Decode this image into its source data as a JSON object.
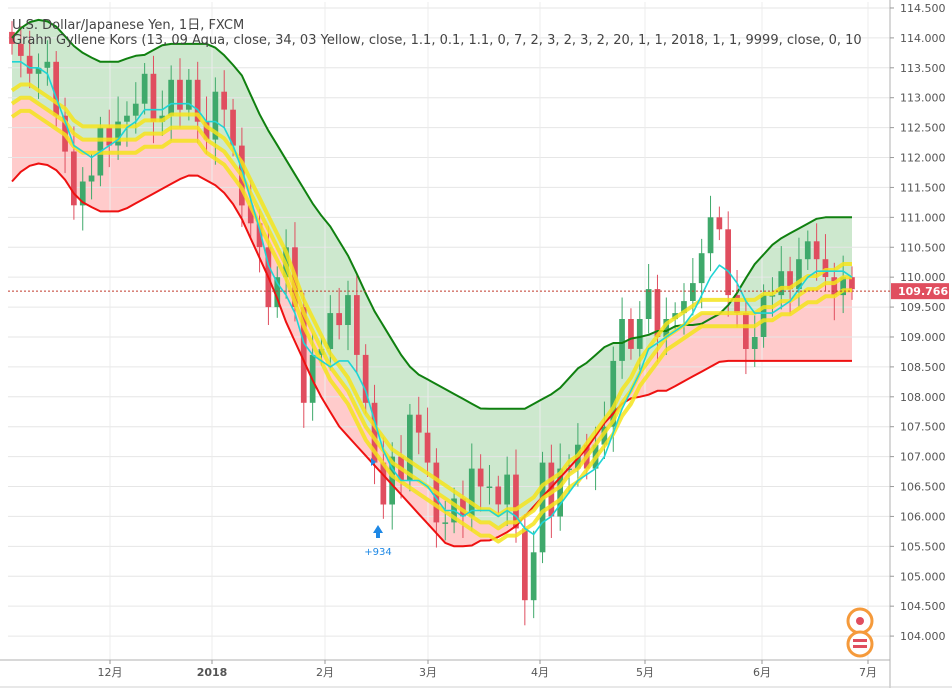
{
  "legend": {
    "title": "U.S. Dollar/Japanese Yen, 1日, FXCM",
    "indicator": "Grahn Gyllene Kors (13, 09 Aqua, close, 34, 03 Yellow, close, 1.1, 0.1, 1.1, 0, 7, 2, 3, 2, 3, 2, 20, 1, 1, 2018, 1, 1, 9999, close, 0, 10"
  },
  "price_label": "109.766",
  "signal": {
    "arrow": "up-arrow-icon",
    "label": "+934"
  },
  "colors": {
    "up": "#3fa96b",
    "down": "#e04e5f",
    "green_band": "#c8e6c9",
    "red_band": "#ffc5c5",
    "green_line": "#108010",
    "red_line": "#ee1111",
    "aqua": "#1fd5d5",
    "yellow": "#f5e41c",
    "price_line": "#c0392b"
  },
  "chart_data": {
    "type": "candlestick",
    "title": "U.S. Dollar/Japanese Yen, 1日, FXCM",
    "x_ticks": [
      "12月",
      "2018",
      "2月",
      "3月",
      "4月",
      "5月",
      "6月",
      "7月"
    ],
    "y_ticks": [
      "104.000",
      "104.500",
      "105.000",
      "105.500",
      "106.000",
      "106.500",
      "107.000",
      "107.500",
      "108.000",
      "108.500",
      "109.000",
      "109.500",
      "110.000",
      "110.500",
      "111.000",
      "111.500",
      "112.000",
      "112.500",
      "113.000",
      "113.500",
      "114.000",
      "114.500"
    ],
    "ylim": [
      103.6,
      114.6
    ],
    "last_price": 109.766,
    "close": [
      113.9,
      113.7,
      113.4,
      113.5,
      113.6,
      112.7,
      112.1,
      111.2,
      111.6,
      111.7,
      112.5,
      112.2,
      112.6,
      112.7,
      112.9,
      113.4,
      112.6,
      112.7,
      113.3,
      112.8,
      113.3,
      112.6,
      112.3,
      113.1,
      112.8,
      112.2,
      111.2,
      110.9,
      110.5,
      109.5,
      110.0,
      110.5,
      109.5,
      107.9,
      108.7,
      108.8,
      109.4,
      109.2,
      109.7,
      108.7,
      107.9,
      106.9,
      106.2,
      107.0,
      106.6,
      107.7,
      107.4,
      106.9,
      105.9,
      105.9,
      106.3,
      106.0,
      106.8,
      106.5,
      106.5,
      106.2,
      106.7,
      105.8,
      104.6,
      105.4,
      106.9,
      106.0,
      106.8,
      106.8,
      107.2,
      106.8,
      107.2,
      107.5,
      108.6,
      109.3,
      108.8,
      109.3,
      109.8,
      109.0,
      109.3,
      109.4,
      109.6,
      109.9,
      110.4,
      111.0,
      110.8,
      109.7,
      109.4,
      108.8,
      109.0,
      109.7,
      109.7,
      110.1,
      109.8,
      110.3,
      110.6,
      110.3,
      110.0,
      109.7,
      110.0,
      109.8
    ],
    "ma_aqua": [
      113.6,
      113.6,
      113.5,
      113.5,
      113.4,
      113.0,
      112.6,
      112.2,
      112.1,
      112.0,
      112.1,
      112.2,
      112.3,
      112.5,
      112.6,
      112.8,
      112.8,
      112.8,
      112.9,
      112.9,
      112.9,
      112.8,
      112.6,
      112.6,
      112.5,
      112.2,
      111.8,
      111.3,
      110.8,
      110.2,
      109.9,
      109.7,
      109.4,
      108.9,
      108.7,
      108.6,
      108.5,
      108.6,
      108.6,
      108.4,
      108.1,
      107.6,
      107.1,
      106.8,
      106.6,
      106.6,
      106.6,
      106.5,
      106.3,
      106.1,
      106.1,
      106.0,
      106.1,
      106.1,
      106.1,
      106.0,
      106.1,
      106.0,
      105.8,
      105.7,
      105.9,
      106.0,
      106.2,
      106.4,
      106.6,
      106.7,
      106.8,
      107.0,
      107.4,
      107.8,
      108.1,
      108.4,
      108.8,
      108.9,
      109.0,
      109.1,
      109.2,
      109.4,
      109.7,
      110.0,
      110.2,
      110.1,
      109.9,
      109.6,
      109.4,
      109.4,
      109.4,
      109.5,
      109.6,
      109.8,
      110.0,
      110.1,
      110.1,
      110.1,
      110.1,
      110.0
    ],
    "ma_yellow": [
      112.9,
      113.0,
      113.0,
      112.9,
      112.8,
      112.7,
      112.6,
      112.4,
      112.3,
      112.3,
      112.3,
      112.3,
      112.3,
      112.3,
      112.3,
      112.4,
      112.4,
      112.4,
      112.5,
      112.5,
      112.5,
      112.5,
      112.3,
      112.2,
      112.1,
      111.9,
      111.7,
      111.4,
      111.1,
      110.8,
      110.5,
      110.2,
      109.8,
      109.4,
      109.1,
      108.8,
      108.5,
      108.3,
      108.1,
      107.8,
      107.5,
      107.3,
      107.1,
      106.9,
      106.8,
      106.7,
      106.6,
      106.5,
      106.4,
      106.3,
      106.2,
      106.1,
      106.0,
      105.9,
      105.9,
      105.8,
      105.9,
      105.9,
      106.0,
      106.1,
      106.3,
      106.4,
      106.5,
      106.7,
      106.8,
      107.0,
      107.2,
      107.4,
      107.6,
      107.9,
      108.1,
      108.4,
      108.6,
      108.8,
      109.0,
      109.1,
      109.2,
      109.3,
      109.4,
      109.4,
      109.4,
      109.4,
      109.4,
      109.4,
      109.4,
      109.5,
      109.5,
      109.6,
      109.6,
      109.7,
      109.8,
      109.8,
      109.9,
      109.9,
      110.0,
      110.0
    ],
    "upper_band": [
      114.0,
      114.2,
      114.3,
      114.3,
      114.2,
      114.0,
      113.8,
      113.7,
      113.6,
      113.6,
      113.6,
      113.7,
      113.7,
      113.8,
      113.9,
      113.9,
      113.9,
      113.9,
      113.9,
      113.8,
      113.6,
      113.4,
      113.0,
      112.6,
      112.3,
      112.0,
      111.7,
      111.4,
      111.1,
      110.9,
      110.6,
      110.3,
      109.9,
      109.5,
      109.2,
      108.9,
      108.6,
      108.4,
      108.3,
      108.2,
      108.1,
      108.0,
      107.9,
      107.8,
      107.8,
      107.8,
      107.8,
      107.8,
      107.9,
      108.0,
      108.1,
      108.3,
      108.5,
      108.6,
      108.8,
      108.9,
      108.9,
      109.0,
      109.0,
      109.1,
      109.1,
      109.2,
      109.2,
      109.2,
      109.3,
      109.4,
      109.6,
      109.9,
      110.2,
      110.4,
      110.6,
      110.7,
      110.8,
      110.9,
      111.0,
      111.0,
      111.0,
      111.0
    ],
    "lower_band": [
      111.6,
      111.8,
      111.9,
      111.9,
      111.8,
      111.6,
      111.3,
      111.2,
      111.1,
      111.1,
      111.1,
      111.2,
      111.3,
      111.4,
      111.5,
      111.6,
      111.7,
      111.7,
      111.6,
      111.5,
      111.3,
      111.0,
      110.6,
      110.2,
      109.8,
      109.3,
      108.9,
      108.5,
      108.1,
      107.8,
      107.5,
      107.3,
      107.1,
      106.9,
      106.7,
      106.5,
      106.3,
      106.1,
      105.9,
      105.7,
      105.5,
      105.5,
      105.5,
      105.6,
      105.6,
      105.7,
      105.8,
      106.0,
      106.2,
      106.4,
      106.6,
      106.8,
      107.0,
      107.2,
      107.5,
      107.7,
      107.9,
      108.0,
      108.0,
      108.1,
      108.1,
      108.2,
      108.3,
      108.4,
      108.5,
      108.6,
      108.6,
      108.6,
      108.6,
      108.6,
      108.6,
      108.6,
      108.6,
      108.6,
      108.6,
      108.6,
      108.6,
      108.6
    ]
  }
}
